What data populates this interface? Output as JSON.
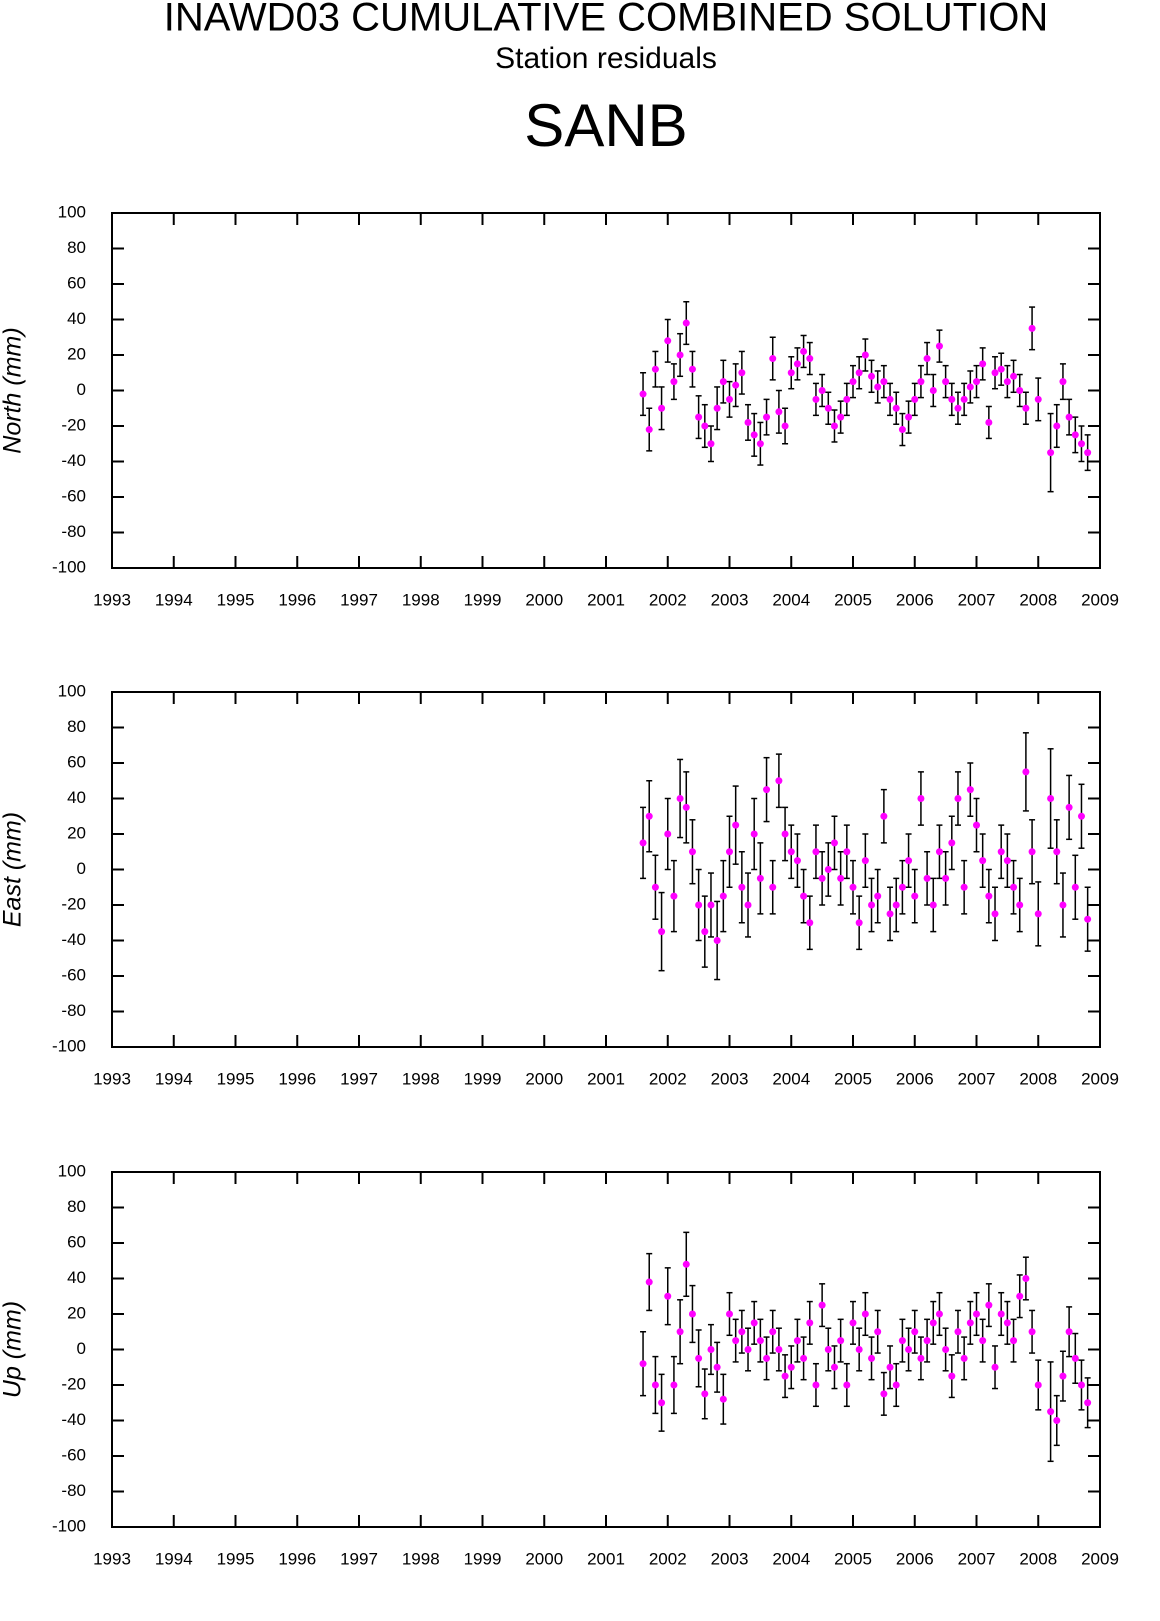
{
  "title": "INAWD03 CUMULATIVE COMBINED SOLUTION",
  "subtitle": "Station residuals",
  "station": "SANB",
  "chart_data": [
    {
      "type": "scatter",
      "ylabel": "North (mm)",
      "color": "#ff00ff",
      "x": [
        2001.6,
        2001.7,
        2001.8,
        2001.9,
        2002.0,
        2002.1,
        2002.2,
        2002.3,
        2002.4,
        2002.5,
        2002.6,
        2002.7,
        2002.8,
        2002.9,
        2003.0,
        2003.1,
        2003.2,
        2003.3,
        2003.4,
        2003.5,
        2003.6,
        2003.7,
        2003.8,
        2003.9,
        2004.0,
        2004.1,
        2004.2,
        2004.3,
        2004.4,
        2004.5,
        2004.6,
        2004.7,
        2004.8,
        2004.9,
        2005.0,
        2005.1,
        2005.2,
        2005.3,
        2005.4,
        2005.5,
        2005.6,
        2005.7,
        2005.8,
        2005.9,
        2006.0,
        2006.1,
        2006.2,
        2006.3,
        2006.4,
        2006.5,
        2006.6,
        2006.7,
        2006.8,
        2006.9,
        2007.0,
        2007.1,
        2007.2,
        2007.3,
        2007.4,
        2007.5,
        2007.6,
        2007.7,
        2007.8,
        2007.9,
        2008.0,
        2008.2,
        2008.3,
        2008.4,
        2008.5,
        2008.6,
        2008.7,
        2008.8
      ],
      "values": [
        -2,
        -22,
        12,
        -10,
        28,
        5,
        20,
        38,
        12,
        -15,
        -20,
        -30,
        -10,
        5,
        -5,
        3,
        10,
        -18,
        -25,
        -30,
        -15,
        18,
        -12,
        -20,
        10,
        15,
        22,
        18,
        -5,
        0,
        -10,
        -20,
        -15,
        -5,
        5,
        10,
        20,
        8,
        2,
        5,
        -5,
        -10,
        -22,
        -15,
        -5,
        5,
        18,
        0,
        25,
        5,
        -5,
        -10,
        -5,
        2,
        5,
        15,
        -18,
        10,
        12,
        5,
        8,
        0,
        -10,
        35,
        -5,
        -35,
        -20,
        5,
        -15,
        -25,
        -30,
        -35
      ],
      "errors": [
        12,
        12,
        10,
        12,
        12,
        10,
        12,
        12,
        10,
        12,
        12,
        10,
        12,
        12,
        10,
        12,
        12,
        10,
        12,
        12,
        10,
        12,
        12,
        10,
        9,
        9,
        9,
        9,
        9,
        9,
        9,
        9,
        9,
        9,
        9,
        9,
        9,
        9,
        9,
        9,
        9,
        9,
        9,
        9,
        9,
        9,
        9,
        9,
        9,
        9,
        9,
        9,
        9,
        9,
        9,
        9,
        9,
        9,
        9,
        9,
        9,
        9,
        9,
        12,
        12,
        22,
        12,
        10,
        10,
        10,
        10,
        10
      ],
      "xlim": [
        1993,
        2009
      ],
      "xticks": [
        1993,
        1994,
        1995,
        1996,
        1997,
        1998,
        1999,
        2000,
        2001,
        2002,
        2003,
        2004,
        2005,
        2006,
        2007,
        2008,
        2009
      ],
      "ylim": [
        -100,
        100
      ],
      "yticks": [
        -100,
        -80,
        -60,
        -40,
        -20,
        0,
        20,
        40,
        60,
        80,
        100
      ]
    },
    {
      "type": "scatter",
      "ylabel": "East (mm)",
      "color": "#ff00ff",
      "x": [
        2001.6,
        2001.7,
        2001.8,
        2001.9,
        2002.0,
        2002.1,
        2002.2,
        2002.3,
        2002.4,
        2002.5,
        2002.6,
        2002.7,
        2002.8,
        2002.9,
        2003.0,
        2003.1,
        2003.2,
        2003.3,
        2003.4,
        2003.5,
        2003.6,
        2003.7,
        2003.8,
        2003.9,
        2004.0,
        2004.1,
        2004.2,
        2004.3,
        2004.4,
        2004.5,
        2004.6,
        2004.7,
        2004.8,
        2004.9,
        2005.0,
        2005.1,
        2005.2,
        2005.3,
        2005.4,
        2005.5,
        2005.6,
        2005.7,
        2005.8,
        2005.9,
        2006.0,
        2006.1,
        2006.2,
        2006.3,
        2006.4,
        2006.5,
        2006.6,
        2006.7,
        2006.8,
        2006.9,
        2007.0,
        2007.1,
        2007.2,
        2007.3,
        2007.4,
        2007.5,
        2007.6,
        2007.7,
        2007.8,
        2007.9,
        2008.0,
        2008.2,
        2008.3,
        2008.4,
        2008.5,
        2008.6,
        2008.7,
        2008.8
      ],
      "values": [
        15,
        30,
        -10,
        -35,
        20,
        -15,
        40,
        35,
        10,
        -20,
        -35,
        -20,
        -40,
        -15,
        10,
        25,
        -10,
        -20,
        20,
        -5,
        45,
        -10,
        50,
        20,
        10,
        5,
        -15,
        -30,
        10,
        -5,
        0,
        15,
        -5,
        10,
        -10,
        -30,
        5,
        -20,
        -15,
        30,
        -25,
        -20,
        -10,
        5,
        -15,
        40,
        -5,
        -20,
        10,
        -5,
        15,
        40,
        -10,
        45,
        25,
        5,
        -15,
        -25,
        10,
        5,
        -10,
        -20,
        55,
        10,
        -25,
        40,
        10,
        -20,
        35,
        -10,
        30,
        -28
      ],
      "errors": [
        20,
        20,
        18,
        22,
        20,
        20,
        22,
        20,
        18,
        20,
        20,
        18,
        22,
        20,
        20,
        22,
        20,
        18,
        20,
        20,
        18,
        15,
        15,
        15,
        15,
        15,
        15,
        15,
        15,
        15,
        15,
        15,
        15,
        15,
        15,
        15,
        15,
        15,
        15,
        15,
        15,
        15,
        15,
        15,
        15,
        15,
        15,
        15,
        15,
        15,
        15,
        15,
        15,
        15,
        15,
        15,
        15,
        15,
        15,
        15,
        15,
        15,
        22,
        18,
        18,
        28,
        18,
        18,
        18,
        18,
        18,
        18
      ],
      "xlim": [
        1993,
        2009
      ],
      "xticks": [
        1993,
        1994,
        1995,
        1996,
        1997,
        1998,
        1999,
        2000,
        2001,
        2002,
        2003,
        2004,
        2005,
        2006,
        2007,
        2008,
        2009
      ],
      "ylim": [
        -100,
        100
      ],
      "yticks": [
        -100,
        -80,
        -60,
        -40,
        -20,
        0,
        20,
        40,
        60,
        80,
        100
      ]
    },
    {
      "type": "scatter",
      "ylabel": "Up (mm)",
      "color": "#ff00ff",
      "x": [
        2001.6,
        2001.7,
        2001.8,
        2001.9,
        2002.0,
        2002.1,
        2002.2,
        2002.3,
        2002.4,
        2002.5,
        2002.6,
        2002.7,
        2002.8,
        2002.9,
        2003.0,
        2003.1,
        2003.2,
        2003.3,
        2003.4,
        2003.5,
        2003.6,
        2003.7,
        2003.8,
        2003.9,
        2004.0,
        2004.1,
        2004.2,
        2004.3,
        2004.4,
        2004.5,
        2004.6,
        2004.7,
        2004.8,
        2004.9,
        2005.0,
        2005.1,
        2005.2,
        2005.3,
        2005.4,
        2005.5,
        2005.6,
        2005.7,
        2005.8,
        2005.9,
        2006.0,
        2006.1,
        2006.2,
        2006.3,
        2006.4,
        2006.5,
        2006.6,
        2006.7,
        2006.8,
        2006.9,
        2007.0,
        2007.1,
        2007.2,
        2007.3,
        2007.4,
        2007.5,
        2007.6,
        2007.7,
        2007.8,
        2007.9,
        2008.0,
        2008.2,
        2008.3,
        2008.4,
        2008.5,
        2008.6,
        2008.7,
        2008.8
      ],
      "values": [
        -8,
        38,
        -20,
        -30,
        30,
        -20,
        10,
        48,
        20,
        -5,
        -25,
        0,
        -10,
        -28,
        20,
        5,
        10,
        0,
        15,
        5,
        -5,
        10,
        0,
        -15,
        -10,
        5,
        -5,
        15,
        -20,
        25,
        0,
        -10,
        5,
        -20,
        15,
        0,
        20,
        -5,
        10,
        -25,
        -10,
        -20,
        5,
        0,
        10,
        -5,
        5,
        15,
        20,
        0,
        -15,
        10,
        -5,
        15,
        20,
        5,
        25,
        -10,
        20,
        15,
        5,
        30,
        40,
        10,
        -20,
        -35,
        -40,
        -15,
        10,
        -5,
        -20,
        -30
      ],
      "errors": [
        18,
        16,
        16,
        16,
        16,
        16,
        18,
        18,
        16,
        16,
        14,
        14,
        14,
        14,
        12,
        12,
        12,
        12,
        12,
        12,
        12,
        12,
        12,
        12,
        12,
        12,
        12,
        12,
        12,
        12,
        12,
        12,
        12,
        12,
        12,
        12,
        12,
        12,
        12,
        12,
        12,
        12,
        12,
        12,
        12,
        12,
        12,
        12,
        12,
        12,
        12,
        12,
        12,
        12,
        12,
        12,
        12,
        12,
        12,
        12,
        12,
        12,
        12,
        12,
        14,
        28,
        14,
        14,
        14,
        14,
        14,
        14
      ],
      "xlim": [
        1993,
        2009
      ],
      "xticks": [
        1993,
        1994,
        1995,
        1996,
        1997,
        1998,
        1999,
        2000,
        2001,
        2002,
        2003,
        2004,
        2005,
        2006,
        2007,
        2008,
        2009
      ],
      "ylim": [
        -100,
        100
      ],
      "yticks": [
        -100,
        -80,
        -60,
        -40,
        -20,
        0,
        20,
        40,
        60,
        80,
        100
      ]
    }
  ]
}
